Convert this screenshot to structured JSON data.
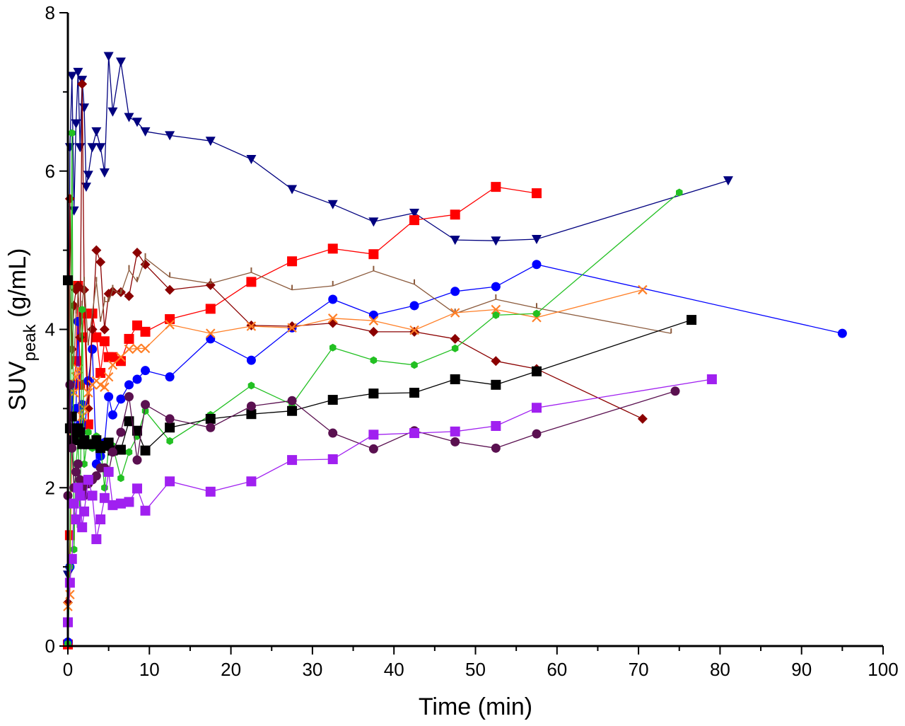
{
  "chart_data": {
    "type": "line",
    "xlabel": "Time (min)",
    "ylabel_main": "SUV",
    "ylabel_sub": "peak",
    "ylabel_unit": " (g/mL)",
    "xlim": [
      0,
      100
    ],
    "ylim": [
      0,
      8
    ],
    "x_ticks": [
      0,
      10,
      20,
      30,
      40,
      50,
      60,
      70,
      80,
      90,
      100
    ],
    "x_tick_labels": [
      "0",
      "10",
      "20",
      "30",
      "40",
      "50",
      "60",
      "70",
      "80",
      "90",
      "100"
    ],
    "y_ticks": [
      0,
      2,
      4,
      6,
      8
    ],
    "y_tick_labels": [
      "0",
      "2",
      "4",
      "6",
      "8"
    ],
    "grid": false,
    "legend": "none",
    "series": [
      {
        "color": "#00007f",
        "marker": "triangle-down",
        "x": [
          0,
          0.25,
          0.5,
          0.75,
          1,
          1.25,
          1.5,
          1.75,
          2,
          2.25,
          2.5,
          3,
          3.5,
          4,
          4.5,
          5,
          5.5,
          6.5,
          7.5,
          8.5,
          9.5,
          12.5,
          17.5,
          22.5,
          27.5,
          32.5,
          37.5,
          42.5,
          47.5,
          52.5,
          57.5,
          81
        ],
        "y": [
          0.9,
          6.3,
          7.2,
          5.5,
          6.6,
          7.25,
          6.3,
          7.15,
          6.8,
          5.8,
          5.95,
          6.3,
          6.5,
          6.3,
          5.98,
          7.45,
          6.75,
          7.38,
          6.68,
          6.62,
          6.5,
          6.45,
          6.38,
          6.15,
          5.77,
          5.58,
          5.36,
          5.47,
          5.13,
          5.12,
          5.14,
          5.88
        ]
      },
      {
        "color": "#ff0000",
        "marker": "square",
        "x": [
          0,
          0.25,
          0.5,
          0.75,
          1,
          1.25,
          1.5,
          1.75,
          2,
          2.5,
          3,
          3.5,
          4,
          4.5,
          5,
          5.5,
          6.5,
          7.5,
          8.5,
          9.5,
          12.5,
          17.5,
          22.5,
          27.5,
          32.5,
          37.5,
          42.5,
          47.5,
          52.5,
          57.5
        ],
        "y": [
          0.02,
          1.4,
          2.6,
          3.3,
          3.6,
          4.55,
          3.3,
          3.9,
          4.2,
          2.8,
          4.2,
          3.9,
          3.45,
          3.85,
          3.65,
          3.65,
          3.6,
          3.88,
          4.05,
          3.97,
          4.13,
          4.26,
          4.6,
          4.86,
          5.02,
          4.95,
          5.38,
          5.45,
          5.8,
          5.72
        ]
      },
      {
        "color": "#0000ff",
        "marker": "circle",
        "x": [
          0,
          0.25,
          0.5,
          0.75,
          1,
          1.25,
          1.5,
          1.75,
          2,
          2.5,
          3,
          3.5,
          4,
          4.5,
          5,
          5.5,
          6.5,
          7.5,
          8.5,
          9.5,
          12.5,
          17.5,
          22.5,
          27.5,
          32.5,
          37.5,
          42.5,
          47.5,
          52.5,
          57.5,
          95
        ],
        "y": [
          0.05,
          1.0,
          3.3,
          2.7,
          3.0,
          4.1,
          2.8,
          3.05,
          2.6,
          3.35,
          3.75,
          2.3,
          2.4,
          2.57,
          3.15,
          2.92,
          3.12,
          3.3,
          3.37,
          3.48,
          3.4,
          3.88,
          3.61,
          4.02,
          4.38,
          4.18,
          4.3,
          4.48,
          4.54,
          4.82,
          3.95
        ]
      },
      {
        "color": "#8b0000",
        "marker": "diamond",
        "x": [
          0,
          0.25,
          0.5,
          0.75,
          1,
          1.25,
          1.5,
          1.75,
          2,
          2.5,
          3,
          3.5,
          4,
          4.5,
          5,
          5.5,
          6.5,
          7.5,
          8.5,
          9.5,
          12.5,
          17.5,
          22.5,
          27.5,
          32.5,
          37.5,
          42.5,
          47.5,
          52.5,
          57.5,
          70.5
        ],
        "y": [
          0.55,
          5.65,
          3.75,
          4.3,
          4.5,
          4.55,
          3.9,
          7.1,
          4.5,
          3.0,
          4.0,
          5.0,
          4.85,
          4.0,
          4.45,
          4.48,
          4.47,
          4.42,
          4.97,
          4.82,
          4.5,
          4.56,
          4.05,
          4.04,
          4.08,
          3.97,
          3.97,
          3.88,
          3.6,
          3.5,
          2.87
        ]
      },
      {
        "color": "#8b5a3c",
        "marker": "tick",
        "x": [
          0,
          0.25,
          0.5,
          0.75,
          1,
          1.25,
          1.5,
          1.75,
          2,
          2.5,
          3,
          3.5,
          4,
          4.5,
          5,
          5.5,
          6.5,
          7.5,
          8.5,
          9.5,
          12.5,
          17.5,
          22.5,
          27.5,
          32.5,
          37.5,
          42.5,
          47.5,
          52.5,
          57.5,
          74
        ],
        "y": [
          0.6,
          4.5,
          3.5,
          3.6,
          4.2,
          4.4,
          3.9,
          4.3,
          4.6,
          3.8,
          4.2,
          4.6,
          4.1,
          4.35,
          4.35,
          4.5,
          4.45,
          4.75,
          4.6,
          4.9,
          4.66,
          4.58,
          4.72,
          4.5,
          4.55,
          4.74,
          4.57,
          4.2,
          4.38,
          4.27,
          3.95
        ]
      },
      {
        "color": "#ff7f27",
        "marker": "x",
        "x": [
          0,
          0.25,
          0.5,
          0.75,
          1,
          1.25,
          1.5,
          1.75,
          2,
          2.5,
          3,
          3.5,
          4,
          4.5,
          5,
          5.5,
          6.5,
          7.5,
          8.5,
          9.5,
          12.5,
          17.5,
          22.5,
          27.5,
          32.5,
          37.5,
          42.5,
          47.5,
          52.5,
          57.5,
          70.5
        ],
        "y": [
          0.5,
          0.65,
          2.7,
          3.2,
          3.4,
          3.5,
          2.6,
          2.9,
          3.0,
          3.2,
          3.3,
          3.35,
          3.3,
          3.27,
          3.4,
          3.55,
          3.65,
          3.75,
          3.76,
          3.76,
          4.06,
          3.95,
          4.04,
          4.02,
          4.14,
          4.11,
          3.99,
          4.21,
          4.25,
          4.15,
          4.5
        ]
      },
      {
        "color": "#22c022",
        "marker": "hexagon",
        "x": [
          0,
          0.25,
          0.5,
          0.75,
          1,
          1.25,
          1.5,
          1.75,
          2,
          2.5,
          3,
          3.5,
          4,
          4.5,
          5,
          5.5,
          6.5,
          7.5,
          8.5,
          9.5,
          12.5,
          17.5,
          22.5,
          27.5,
          32.5,
          37.5,
          42.5,
          47.5,
          52.5,
          57.5,
          75
        ],
        "y": [
          0.03,
          1.0,
          6.48,
          1.22,
          2.3,
          2.6,
          1.52,
          4.25,
          2.3,
          2.7,
          2.5,
          2.65,
          2.55,
          2.0,
          2.5,
          2.53,
          2.12,
          2.45,
          2.65,
          2.97,
          2.59,
          2.92,
          3.29,
          3.05,
          3.77,
          3.61,
          3.55,
          3.76,
          4.18,
          4.2,
          5.73
        ]
      },
      {
        "color": "#000000",
        "marker": "square",
        "x": [
          0,
          0.25,
          0.5,
          0.75,
          1,
          1.25,
          1.5,
          1.75,
          2,
          2.5,
          3,
          3.5,
          4,
          4.5,
          5,
          5.5,
          6.5,
          7.5,
          8.5,
          9.5,
          12.5,
          17.5,
          22.5,
          27.5,
          32.5,
          37.5,
          42.5,
          47.5,
          52.5,
          57.5,
          76.5
        ],
        "y": [
          4.62,
          2.75,
          2.9,
          2.6,
          2.7,
          2.75,
          2.7,
          2.55,
          2.6,
          2.55,
          2.55,
          2.6,
          2.5,
          2.53,
          2.57,
          2.47,
          2.48,
          2.84,
          2.72,
          2.47,
          2.76,
          2.87,
          2.93,
          2.97,
          3.11,
          3.19,
          3.2,
          3.37,
          3.3,
          3.47,
          4.12
        ]
      },
      {
        "color": "#5a1050",
        "marker": "circle",
        "x": [
          0,
          0.25,
          0.5,
          0.75,
          1,
          1.25,
          1.5,
          1.75,
          2,
          2.5,
          3,
          3.5,
          4,
          4.5,
          5,
          5.5,
          6.5,
          7.5,
          8.5,
          9.5,
          12.5,
          17.5,
          22.5,
          27.5,
          32.5,
          37.5,
          42.5,
          47.5,
          52.5,
          57.5,
          74.5
        ],
        "y": [
          1.9,
          3.3,
          2.5,
          2.0,
          2.2,
          2.3,
          2.1,
          2.0,
          1.9,
          2.05,
          2.1,
          2.15,
          2.25,
          2.25,
          2.2,
          2.45,
          2.7,
          3.15,
          2.35,
          3.05,
          2.87,
          2.76,
          3.03,
          3.1,
          2.69,
          2.49,
          2.72,
          2.58,
          2.5,
          2.68,
          3.22
        ]
      },
      {
        "color": "#a020f0",
        "marker": "square",
        "x": [
          0,
          0.25,
          0.5,
          0.75,
          1,
          1.25,
          1.5,
          1.75,
          2,
          2.5,
          3,
          3.5,
          4,
          4.5,
          5,
          5.5,
          6.5,
          7.5,
          8.5,
          9.5,
          12.5,
          17.5,
          22.5,
          27.5,
          32.5,
          37.5,
          42.5,
          47.5,
          52.5,
          57.5,
          79
        ],
        "y": [
          0.3,
          0.8,
          1.1,
          1.8,
          1.6,
          2.0,
          1.9,
          1.5,
          1.7,
          2.1,
          1.9,
          1.35,
          1.6,
          1.87,
          2.2,
          1.78,
          1.8,
          1.82,
          1.99,
          1.71,
          2.08,
          1.95,
          2.08,
          2.35,
          2.36,
          2.67,
          2.69,
          2.71,
          2.78,
          3.01,
          3.37
        ]
      }
    ]
  }
}
